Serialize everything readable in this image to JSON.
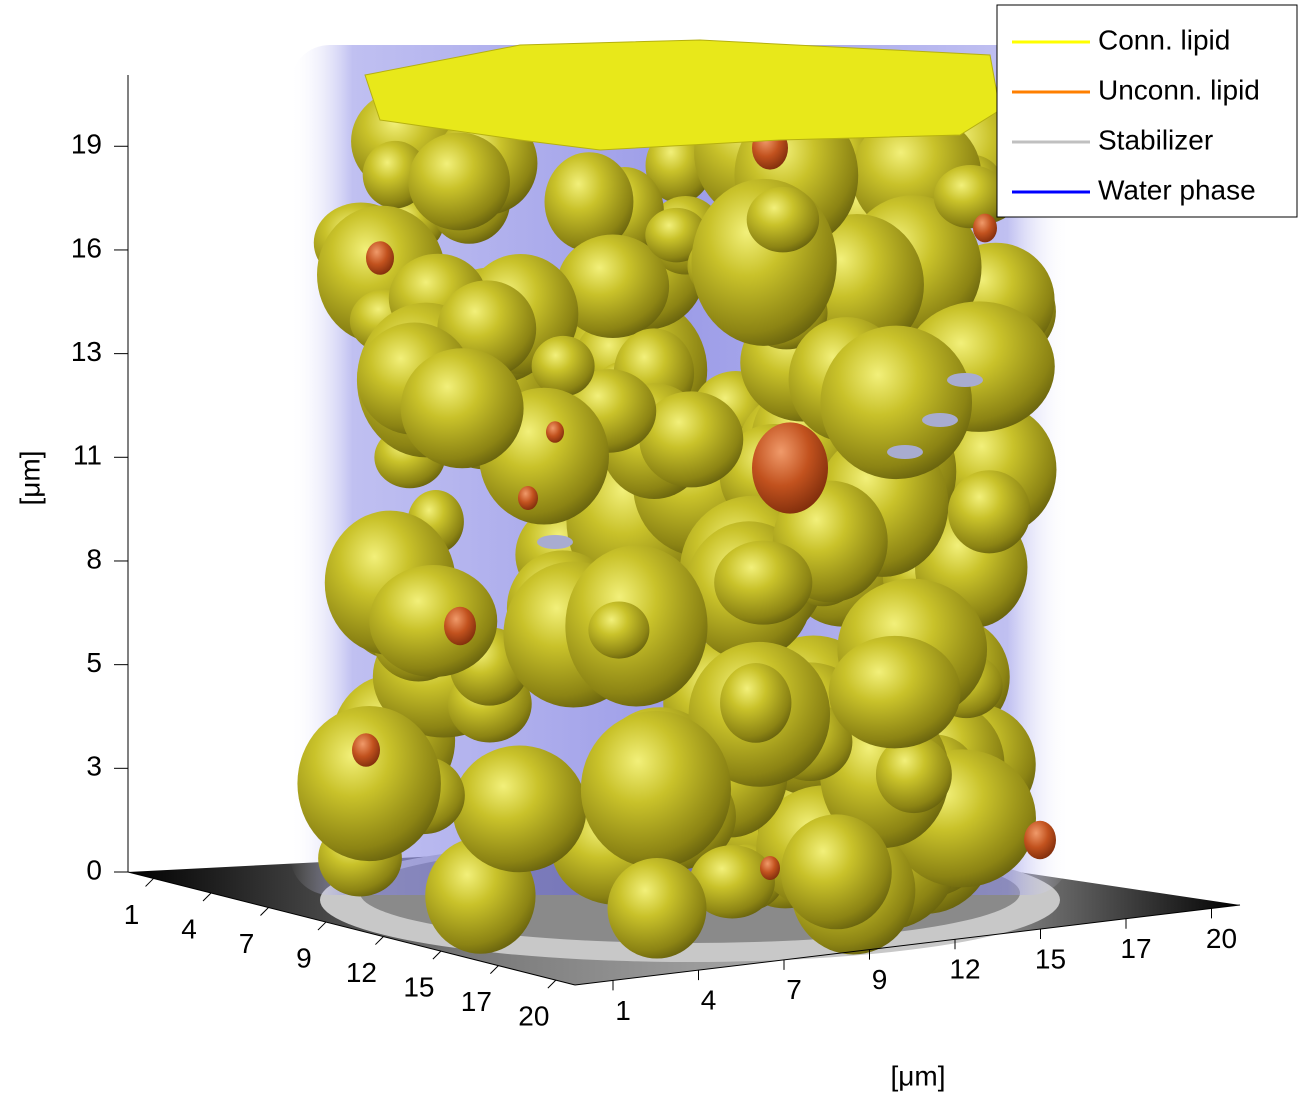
{
  "chart_data": {
    "type": "volume3d",
    "zlabel": "[μm]",
    "xlabel": "[μm]",
    "zlim": [
      0,
      20.5
    ],
    "zticks": [
      0,
      {
        "value": 2.667,
        "label": "3"
      },
      {
        "value": 5.333,
        "label": "5"
      },
      8,
      {
        "value": 10.667,
        "label": "11"
      },
      {
        "value": 13.333,
        "label": "13"
      },
      16,
      {
        "value": 18.667,
        "label": "19"
      }
    ],
    "xlim": [
      0,
      21
    ],
    "xticks": [
      {
        "value": 1.2,
        "label": "1"
      },
      {
        "value": 3.9,
        "label": "4"
      },
      {
        "value": 6.6,
        "label": "7"
      },
      {
        "value": 9.3,
        "label": "9"
      },
      12,
      {
        "value": 14.7,
        "label": "15"
      },
      {
        "value": 17.4,
        "label": "17"
      },
      {
        "value": 20.1,
        "label": "20"
      }
    ],
    "ylim": [
      0,
      21
    ],
    "yticks": [
      {
        "value": 1.2,
        "label": "1"
      },
      {
        "value": 3.9,
        "label": "4"
      },
      {
        "value": 6.6,
        "label": "7"
      },
      {
        "value": 9.3,
        "label": "9"
      },
      12,
      {
        "value": 14.7,
        "label": "15"
      },
      {
        "value": 17.4,
        "label": "17"
      },
      {
        "value": 20.1,
        "label": "20"
      }
    ],
    "series": [
      {
        "name": "Conn. lipid",
        "color": "#ffff00"
      },
      {
        "name": "Unconn. lipid",
        "color": "#ff7f00"
      },
      {
        "name": "Stabilizer",
        "color": "#c0c0c0"
      },
      {
        "name": "Water phase",
        "color": "#0000ff"
      }
    ]
  }
}
